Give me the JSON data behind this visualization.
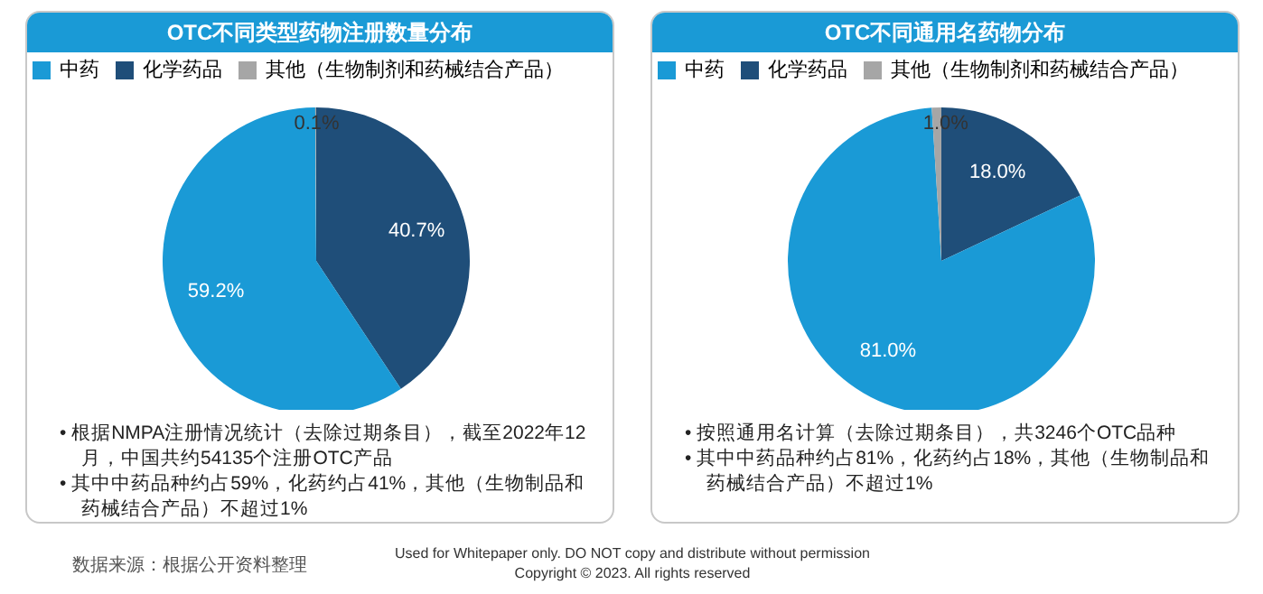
{
  "chart_data": [
    {
      "type": "pie",
      "title": "OTC不同类型药物注册数量分布",
      "categories": [
        "中药",
        "化学药品",
        "其他（生物制剂和药械结合产品）"
      ],
      "values": [
        59.2,
        40.7,
        0.1
      ],
      "colors": [
        "#1a9ad6",
        "#1f4e79",
        "#a6a6a6"
      ],
      "value_labels": [
        "59.2%",
        "40.7%",
        "0.1%"
      ],
      "legend": "top",
      "annotations": [
        "• 根据NMPA注册情况统计（去除过期条目），截至2022年12月，中国共约54135个注册OTC产品",
        "• 其中中药品种约占59%，化药约占41%，其他（生物制品和药械结合产品）不超过1%",
        "数据来源：根据公开资料整理"
      ]
    },
    {
      "type": "pie",
      "title": "OTC不同通用名药物分布",
      "categories": [
        "中药",
        "化学药品",
        "其他（生物制剂和药械结合产品）"
      ],
      "values": [
        81.0,
        18.0,
        1.0
      ],
      "colors": [
        "#1a9ad6",
        "#1f4e79",
        "#a6a6a6"
      ],
      "value_labels": [
        "81.0%",
        "18.0%",
        "1.0%"
      ],
      "legend": "top",
      "annotations": [
        "• 按照通用名计算（去除过期条目），共3246个OTC品种",
        "• 其中中药品种约占81%，化药约占18%，其他（生物制品和药械结合产品）不超过1%",
        "Used for Whitepaper only. DO NOT copy and distribute without permission",
        "Copyright © 2023. All rights reserved"
      ]
    }
  ]
}
